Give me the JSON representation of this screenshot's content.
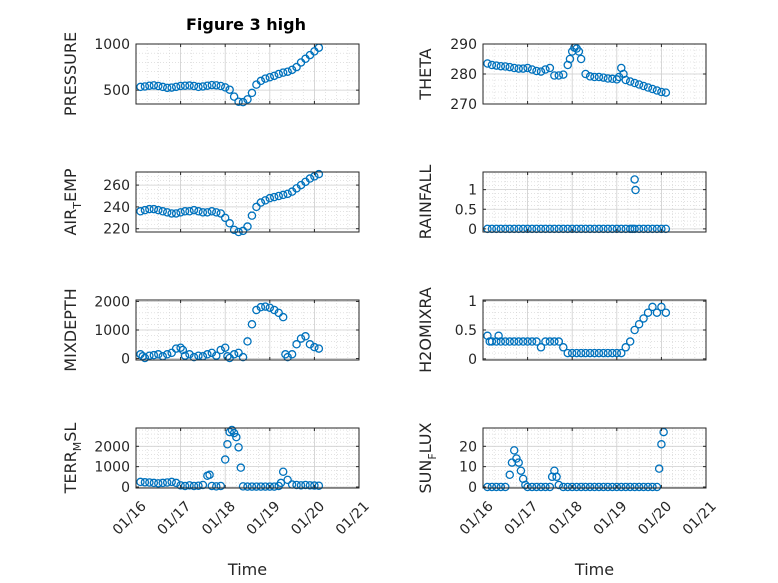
{
  "figure_title": "Figure 3 high",
  "xtick_labels": [
    "01/16",
    "01/17",
    "01/18",
    "01/19",
    "01/20",
    "01/21"
  ],
  "marker_color": "#0072BD",
  "chart_data": [
    {
      "type": "scatter",
      "ylabel": "PRESSURE",
      "title": "Figure 3 high",
      "xlabel": "",
      "xlim": [
        16,
        21
      ],
      "ylim": [
        350,
        1000
      ],
      "yticks": [
        500,
        1000
      ],
      "grid": true,
      "x": [
        16.1,
        16.2,
        16.3,
        16.4,
        16.5,
        16.6,
        16.7,
        16.8,
        16.9,
        17.0,
        17.1,
        17.2,
        17.3,
        17.4,
        17.5,
        17.6,
        17.7,
        17.8,
        17.9,
        18.0,
        18.1,
        18.2,
        18.3,
        18.4,
        18.5,
        18.6,
        18.7,
        18.8,
        18.9,
        19.0,
        19.1,
        19.2,
        19.3,
        19.4,
        19.5,
        19.6,
        19.7,
        19.8,
        19.9,
        20.0,
        20.1
      ],
      "y": [
        535,
        540,
        548,
        552,
        545,
        535,
        525,
        528,
        536,
        545,
        548,
        550,
        545,
        535,
        540,
        548,
        555,
        552,
        545,
        530,
        505,
        430,
        375,
        370,
        400,
        470,
        560,
        600,
        625,
        640,
        655,
        675,
        690,
        700,
        720,
        750,
        800,
        840,
        880,
        920,
        960
      ]
    },
    {
      "type": "scatter",
      "ylabel": "THETA",
      "title": "",
      "xlabel": "",
      "xlim": [
        16,
        21
      ],
      "ylim": [
        270,
        290
      ],
      "yticks": [
        270,
        280,
        290
      ],
      "grid": true,
      "x": [
        16.1,
        16.2,
        16.3,
        16.4,
        16.5,
        16.6,
        16.7,
        16.8,
        16.9,
        17.0,
        17.1,
        17.2,
        17.3,
        17.4,
        17.5,
        17.6,
        17.7,
        17.8,
        17.9,
        17.95,
        18.0,
        18.05,
        18.1,
        18.15,
        18.2,
        18.3,
        18.4,
        18.5,
        18.6,
        18.7,
        18.8,
        18.9,
        19.0,
        19.05,
        19.1,
        19.15,
        19.2,
        19.3,
        19.4,
        19.5,
        19.6,
        19.7,
        19.8,
        19.9,
        20.0,
        20.1
      ],
      "y": [
        283.5,
        283,
        282.8,
        282.6,
        282.5,
        282.3,
        282,
        281.8,
        281.8,
        282,
        281.5,
        281,
        280.8,
        281.5,
        282,
        279.5,
        279.5,
        279.8,
        283,
        285,
        287.5,
        288.8,
        288.5,
        287.5,
        285,
        280,
        279.2,
        279,
        279,
        278.8,
        278.5,
        278.4,
        278.2,
        279,
        282,
        280,
        278,
        277.5,
        277,
        276.5,
        276,
        275.5,
        275,
        274.5,
        274,
        273.8
      ]
    },
    {
      "type": "scatter",
      "ylabel": "AIR_TEMP",
      "ylabel_main": "AIR",
      "ylabel_sub": "T",
      "ylabel_rest": "EMP",
      "title": "",
      "xlabel": "",
      "xlim": [
        16,
        21
      ],
      "ylim": [
        217,
        272
      ],
      "yticks": [
        220,
        240,
        260
      ],
      "grid": true,
      "x": [
        16.1,
        16.2,
        16.3,
        16.4,
        16.5,
        16.6,
        16.7,
        16.8,
        16.9,
        17.0,
        17.1,
        17.2,
        17.3,
        17.4,
        17.5,
        17.6,
        17.7,
        17.8,
        17.9,
        18.0,
        18.1,
        18.2,
        18.3,
        18.4,
        18.5,
        18.6,
        18.7,
        18.8,
        18.9,
        19.0,
        19.1,
        19.2,
        19.3,
        19.4,
        19.5,
        19.6,
        19.7,
        19.8,
        19.9,
        20.0,
        20.1
      ],
      "y": [
        236,
        237,
        238,
        238,
        237,
        236,
        235,
        234,
        234,
        235,
        236,
        236,
        237,
        236,
        235,
        235,
        236,
        235,
        234,
        230,
        225,
        219,
        217,
        218,
        222,
        232,
        240,
        244,
        246,
        248,
        249,
        250,
        251,
        252,
        254,
        257,
        260,
        263,
        266,
        268,
        270
      ]
    },
    {
      "type": "scatter",
      "ylabel": "RAINFALL",
      "title": "",
      "xlabel": "",
      "xlim": [
        16,
        21
      ],
      "ylim": [
        -0.08,
        1.45
      ],
      "yticks": [
        0,
        0.5,
        1
      ],
      "ytick_labels": [
        "0",
        "0.5",
        "1"
      ],
      "grid": true,
      "x": [
        16.1,
        16.2,
        16.3,
        16.4,
        16.5,
        16.6,
        16.7,
        16.8,
        16.9,
        17.0,
        17.1,
        17.2,
        17.3,
        17.4,
        17.5,
        17.6,
        17.7,
        17.8,
        17.9,
        18.0,
        18.1,
        18.2,
        18.3,
        18.4,
        18.5,
        18.6,
        18.7,
        18.8,
        18.9,
        19.0,
        19.1,
        19.2,
        19.3,
        19.35,
        19.4,
        19.5,
        19.6,
        19.7,
        19.8,
        19.9,
        20.0,
        20.1,
        19.4,
        19.42
      ],
      "y": [
        0,
        0,
        0,
        0,
        0,
        0,
        0,
        0,
        0,
        0,
        0,
        0,
        0,
        0,
        0,
        0,
        0,
        0,
        0,
        0,
        0,
        0,
        0,
        0,
        0,
        0,
        0,
        0,
        0,
        0,
        0,
        0,
        0,
        0,
        0,
        0,
        0,
        0,
        0,
        0,
        0,
        0,
        1.26,
        0.99
      ]
    },
    {
      "type": "scatter",
      "ylabel": "MIXDEPTH",
      "title": "",
      "xlabel": "",
      "xlim": [
        16,
        21
      ],
      "ylim": [
        -50,
        2050
      ],
      "yticks": [
        0,
        1000,
        2000
      ],
      "grid": true,
      "x": [
        16.1,
        16.15,
        16.2,
        16.3,
        16.4,
        16.5,
        16.6,
        16.7,
        16.8,
        16.9,
        17.0,
        17.05,
        17.1,
        17.2,
        17.3,
        17.4,
        17.5,
        17.6,
        17.7,
        17.8,
        17.9,
        18.0,
        18.05,
        18.1,
        18.2,
        18.3,
        18.4,
        18.5,
        18.6,
        18.7,
        18.8,
        18.9,
        19.0,
        19.1,
        19.2,
        19.3,
        19.35,
        19.4,
        19.5,
        19.6,
        19.7,
        19.8,
        19.9,
        20.0,
        20.1
      ],
      "y": [
        150,
        80,
        20,
        100,
        120,
        150,
        80,
        150,
        200,
        350,
        380,
        300,
        100,
        150,
        50,
        100,
        80,
        150,
        200,
        100,
        300,
        380,
        80,
        20,
        150,
        200,
        50,
        600,
        1200,
        1700,
        1800,
        1820,
        1780,
        1700,
        1600,
        1450,
        150,
        50,
        150,
        500,
        700,
        780,
        500,
        400,
        350
      ]
    },
    {
      "type": "scatter",
      "ylabel": "H2OMIXRA",
      "title": "",
      "xlabel": "",
      "xlim": [
        16,
        21
      ],
      "ylim": [
        -0.02,
        1.02
      ],
      "yticks": [
        0,
        0.5,
        1
      ],
      "ytick_labels": [
        "0",
        "0.5",
        "1"
      ],
      "grid": true,
      "x": [
        16.1,
        16.15,
        16.2,
        16.3,
        16.35,
        16.4,
        16.5,
        16.6,
        16.7,
        16.8,
        16.9,
        17.0,
        17.1,
        17.2,
        17.3,
        17.4,
        17.5,
        17.6,
        17.7,
        17.8,
        17.9,
        18.0,
        18.1,
        18.2,
        18.3,
        18.4,
        18.5,
        18.6,
        18.7,
        18.8,
        18.9,
        19.0,
        19.1,
        19.2,
        19.3,
        19.4,
        19.5,
        19.6,
        19.7,
        19.8,
        19.9,
        20.0,
        20.1
      ],
      "y": [
        0.4,
        0.3,
        0.3,
        0.3,
        0.4,
        0.3,
        0.3,
        0.3,
        0.3,
        0.3,
        0.3,
        0.3,
        0.3,
        0.3,
        0.2,
        0.3,
        0.3,
        0.3,
        0.3,
        0.2,
        0.1,
        0.1,
        0.1,
        0.1,
        0.1,
        0.1,
        0.1,
        0.1,
        0.1,
        0.1,
        0.1,
        0.1,
        0.1,
        0.2,
        0.3,
        0.5,
        0.6,
        0.7,
        0.8,
        0.9,
        0.8,
        0.9,
        0.8
      ]
    },
    {
      "type": "scatter",
      "ylabel": "TERR_MSL",
      "ylabel_main": "TERR",
      "ylabel_sub": "M",
      "ylabel_rest": "SL",
      "title": "",
      "xlabel": "Time",
      "xlim": [
        16,
        21
      ],
      "ylim": [
        -50,
        2900
      ],
      "yticks": [
        0,
        1000,
        2000
      ],
      "grid": true,
      "x": [
        16.1,
        16.2,
        16.3,
        16.4,
        16.5,
        16.6,
        16.7,
        16.8,
        16.9,
        17.0,
        17.1,
        17.2,
        17.3,
        17.4,
        17.5,
        17.6,
        17.65,
        17.7,
        17.8,
        17.9,
        18.0,
        18.05,
        18.1,
        18.15,
        18.2,
        18.25,
        18.3,
        18.35,
        18.4,
        18.5,
        18.6,
        18.7,
        18.8,
        18.9,
        19.0,
        19.1,
        19.2,
        19.25,
        19.3,
        19.4,
        19.5,
        19.6,
        19.7,
        19.8,
        19.9,
        20.0,
        20.1
      ],
      "y": [
        250,
        230,
        220,
        200,
        180,
        200,
        220,
        250,
        200,
        80,
        50,
        80,
        50,
        60,
        100,
        550,
        600,
        50,
        30,
        50,
        1350,
        2100,
        2700,
        2800,
        2650,
        2450,
        1950,
        950,
        30,
        20,
        20,
        20,
        20,
        20,
        20,
        20,
        50,
        200,
        750,
        350,
        120,
        100,
        80,
        100,
        80,
        70,
        60
      ]
    },
    {
      "type": "scatter",
      "ylabel": "SUN_FLUX",
      "ylabel_main": "SUN",
      "ylabel_sub": "F",
      "ylabel_rest": "LUX",
      "title": "",
      "xlabel": "Time",
      "xlim": [
        16,
        21
      ],
      "ylim": [
        -0.5,
        29
      ],
      "yticks": [
        0,
        10,
        20
      ],
      "grid": true,
      "x": [
        16.1,
        16.2,
        16.3,
        16.4,
        16.5,
        16.6,
        16.65,
        16.7,
        16.75,
        16.8,
        16.85,
        16.9,
        16.95,
        17.0,
        17.1,
        17.2,
        17.3,
        17.4,
        17.5,
        17.55,
        17.6,
        17.65,
        17.7,
        17.8,
        17.9,
        18.0,
        18.1,
        18.2,
        18.3,
        18.4,
        18.5,
        18.6,
        18.7,
        18.8,
        18.9,
        19.0,
        19.1,
        19.2,
        19.3,
        19.4,
        19.5,
        19.6,
        19.7,
        19.8,
        19.9,
        19.95,
        20.0,
        20.05
      ],
      "y": [
        0,
        0,
        0,
        0,
        0,
        6,
        12,
        18,
        14,
        12,
        8,
        4,
        1,
        0,
        0,
        0,
        0,
        0,
        0,
        5,
        8,
        5,
        1,
        0,
        0,
        0,
        0,
        0,
        0,
        0,
        0,
        0,
        0,
        0,
        0,
        0,
        0,
        0,
        0,
        0,
        0,
        0,
        0,
        0,
        0,
        9,
        21,
        27
      ]
    }
  ]
}
